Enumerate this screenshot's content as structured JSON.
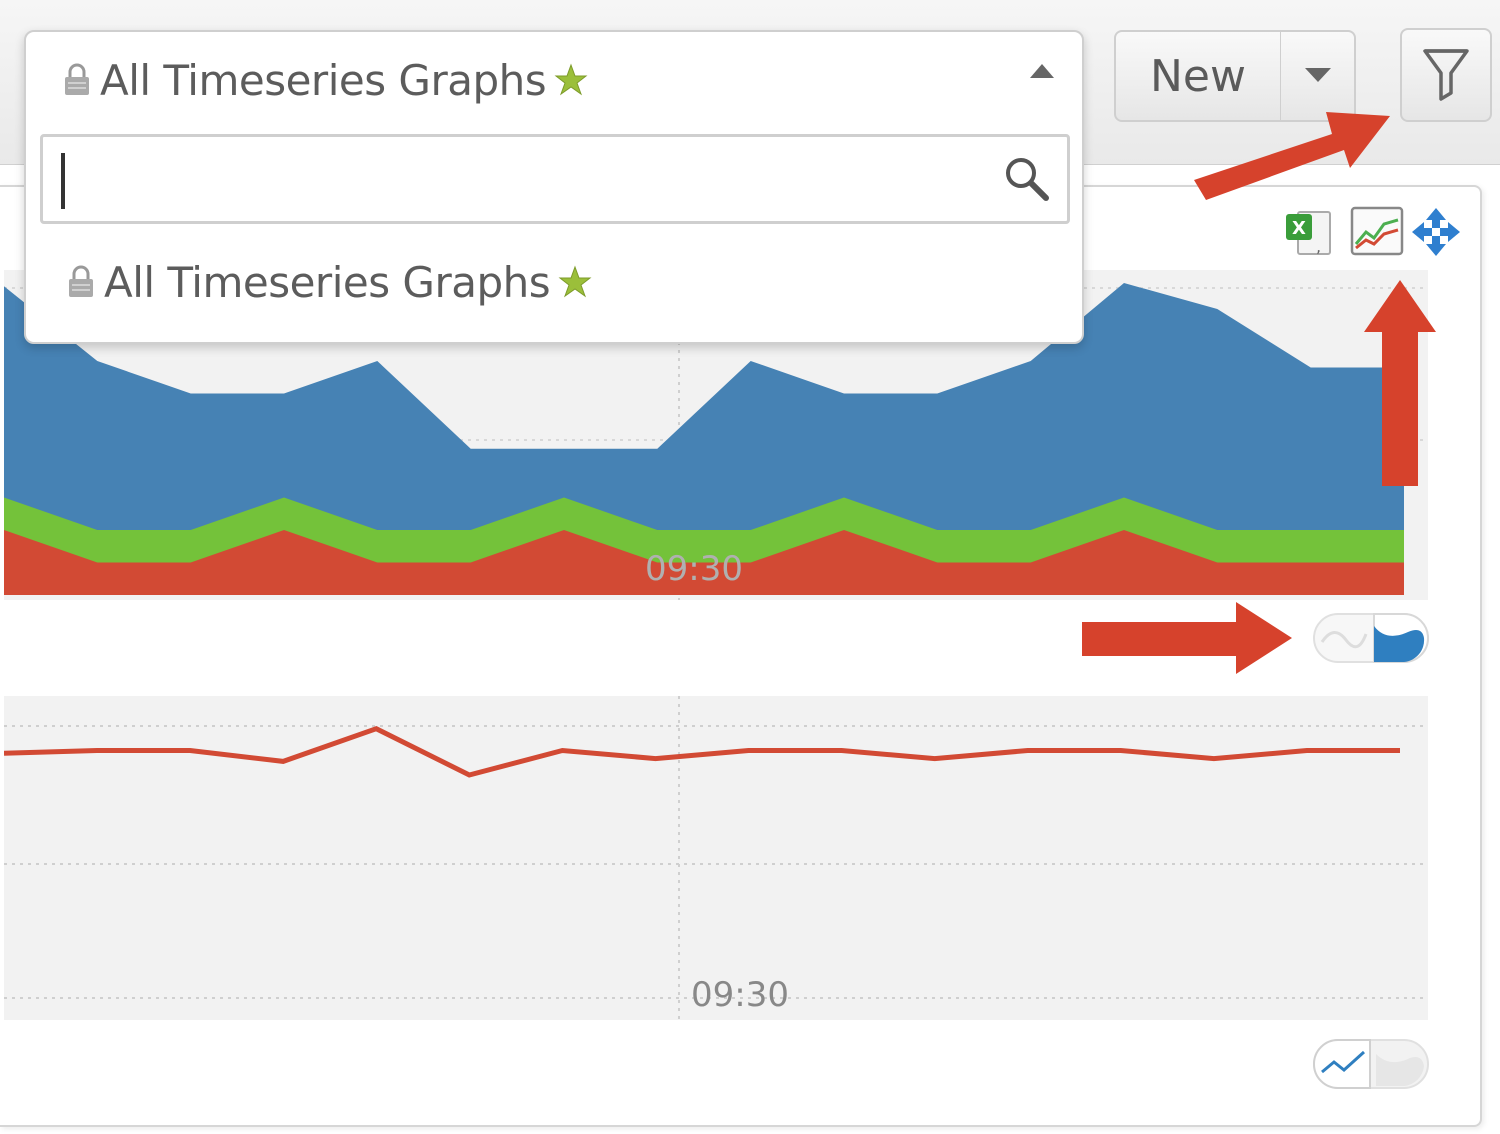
{
  "dropdown": {
    "title": "All Timeseries Graphs",
    "search_placeholder": "",
    "items": [
      {
        "label": "All Timeseries Graphs"
      }
    ]
  },
  "toolbar": {
    "new_label": "New"
  },
  "icons": {
    "export": "excel-export-icon",
    "graph": "timeseries-graph-icon",
    "move": "move-arrows-icon",
    "filter": "filter-funnel-icon",
    "lock": "lock-icon",
    "star": "star-icon",
    "search": "search-icon"
  },
  "colors": {
    "series_blue": "#4682b4",
    "series_green": "#74c23a",
    "series_red": "#d24a34",
    "arrow_red": "#d6422c"
  },
  "chart_data": [
    {
      "type": "area",
      "stacked": true,
      "x_tick_labels": [
        "09:30"
      ],
      "series": [
        {
          "values": [
            0.95,
            0.72,
            0.62,
            0.62,
            0.72,
            0.45,
            0.45,
            0.45,
            0.72,
            0.62,
            0.62,
            0.72,
            0.96,
            0.88,
            0.7,
            0.7
          ]
        },
        {
          "values": [
            0.3,
            0.2,
            0.2,
            0.3,
            0.2,
            0.2,
            0.3,
            0.2,
            0.2,
            0.3,
            0.2,
            0.2,
            0.3,
            0.2,
            0.2,
            0.2
          ]
        },
        {
          "values": [
            0.2,
            0.1,
            0.1,
            0.2,
            0.1,
            0.1,
            0.2,
            0.1,
            0.1,
            0.2,
            0.1,
            0.1,
            0.2,
            0.1,
            0.1,
            0.1
          ]
        }
      ]
    },
    {
      "type": "line",
      "x_tick_labels": [
        "09:30"
      ],
      "series": [
        {
          "values": [
            0.9,
            0.91,
            0.91,
            0.87,
            0.99,
            0.82,
            0.91,
            0.88,
            0.91,
            0.91,
            0.88,
            0.91,
            0.91,
            0.88,
            0.91,
            0.91
          ]
        }
      ]
    }
  ]
}
